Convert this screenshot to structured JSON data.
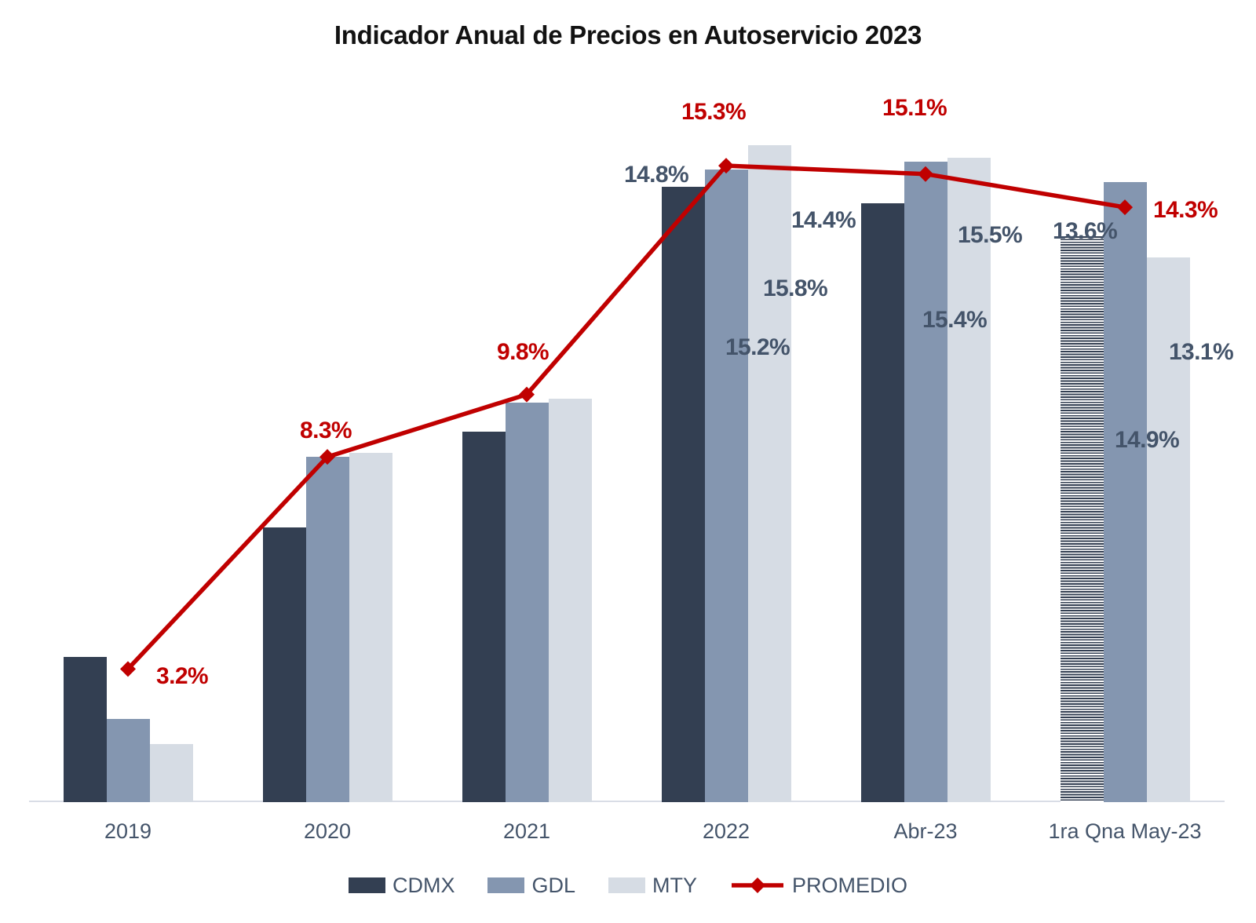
{
  "chart_data": {
    "type": "bar",
    "subtype": "grouped-bars-with-line-overlay",
    "title": "Indicador Anual de Precios en Autoservicio 2023",
    "categories": [
      "2019",
      "2020",
      "2021",
      "2022",
      "Abr-23",
      "1ra Qna May-23"
    ],
    "series": [
      {
        "name": "CDMX",
        "type": "bar",
        "color": "#333F52",
        "values": [
          3.5,
          6.6,
          8.9,
          14.8,
          14.4,
          13.6
        ],
        "hatched_category_indices": [
          5
        ]
      },
      {
        "name": "GDL",
        "type": "bar",
        "color": "#8496B0",
        "values": [
          2.0,
          8.3,
          9.6,
          15.2,
          15.4,
          14.9
        ]
      },
      {
        "name": "MTY",
        "type": "bar",
        "color": "#D6DCE4",
        "values": [
          1.4,
          8.4,
          9.7,
          15.8,
          15.5,
          13.1
        ]
      },
      {
        "name": "PROMEDIO",
        "type": "line",
        "color": "#C00000",
        "marker": "diamond",
        "values": [
          3.2,
          8.3,
          9.8,
          15.3,
          15.1,
          14.3
        ]
      }
    ],
    "data_labels": [
      {
        "series_index": 3,
        "category_index": 0,
        "text": "3.2%",
        "color": "#C00000"
      },
      {
        "series_index": 3,
        "category_index": 1,
        "text": "8.3%",
        "color": "#C00000"
      },
      {
        "series_index": 3,
        "category_index": 2,
        "text": "9.8%",
        "color": "#C00000"
      },
      {
        "series_index": 3,
        "category_index": 3,
        "text": "15.3%",
        "color": "#C00000"
      },
      {
        "series_index": 3,
        "category_index": 4,
        "text": "15.1%",
        "color": "#C00000"
      },
      {
        "series_index": 3,
        "category_index": 5,
        "text": "14.3%",
        "color": "#C00000"
      },
      {
        "series_index": 0,
        "category_index": 3,
        "text": "14.8%",
        "color": "#44546A"
      },
      {
        "series_index": 0,
        "category_index": 4,
        "text": "14.4%",
        "color": "#44546A"
      },
      {
        "series_index": 0,
        "category_index": 5,
        "text": "13.6%",
        "color": "#44546A"
      },
      {
        "series_index": 1,
        "category_index": 3,
        "text": "15.2%",
        "color": "#44546A"
      },
      {
        "series_index": 1,
        "category_index": 4,
        "text": "15.4%",
        "color": "#44546A"
      },
      {
        "series_index": 1,
        "category_index": 5,
        "text": "14.9%",
        "color": "#44546A"
      },
      {
        "series_index": 2,
        "category_index": 3,
        "text": "15.8%",
        "color": "#44546A"
      },
      {
        "series_index": 2,
        "category_index": 4,
        "text": "15.5%",
        "color": "#44546A"
      },
      {
        "series_index": 2,
        "category_index": 5,
        "text": "13.1%",
        "color": "#44546A"
      }
    ],
    "ylim": [
      0,
      17
    ],
    "grid": false,
    "y_axis_visible": false,
    "axis_line_color": "#D9DDE6",
    "legend_position": "bottom"
  },
  "legend": {
    "items": [
      {
        "label": "CDMX",
        "color": "#333F52",
        "type": "bar"
      },
      {
        "label": "GDL",
        "color": "#8496B0",
        "type": "bar"
      },
      {
        "label": "MTY",
        "color": "#D6DCE4",
        "type": "bar"
      },
      {
        "label": "PROMEDIO",
        "color": "#C00000",
        "type": "line"
      }
    ]
  }
}
